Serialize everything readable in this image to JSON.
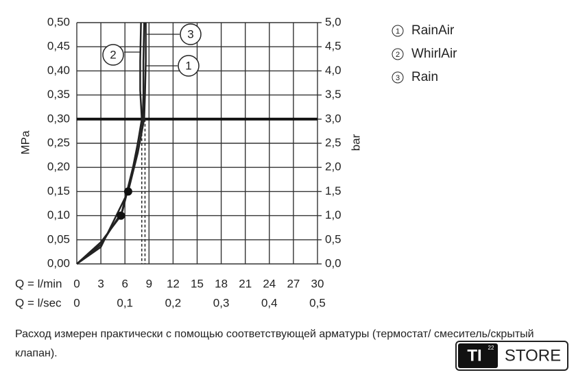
{
  "chart_data": {
    "type": "line",
    "y_label": "MPa",
    "y2_label": "bar",
    "x_label": "Q = l/min",
    "x2_label": "Q = l/sec",
    "xlim": [
      0,
      30
    ],
    "xticks": [
      0,
      3,
      6,
      9,
      12,
      15,
      18,
      21,
      24,
      27,
      30
    ],
    "x2lim": [
      0,
      0.5
    ],
    "x2ticks": [
      0,
      {
        "value": 0.1,
        "label": "0,1"
      },
      {
        "value": 0.2,
        "label": "0,2"
      },
      {
        "value": 0.3,
        "label": "0,3"
      },
      {
        "value": 0.4,
        "label": "0,4"
      },
      {
        "value": 0.5,
        "label": "0,5"
      }
    ],
    "ylim": [
      0,
      0.5
    ],
    "yticks": [
      {
        "value": 0,
        "label": "0,00"
      },
      {
        "value": 0.05,
        "label": "0,05"
      },
      {
        "value": 0.1,
        "label": "0,10"
      },
      {
        "value": 0.15,
        "label": "0,15"
      },
      {
        "value": 0.2,
        "label": "0,20"
      },
      {
        "value": 0.25,
        "label": "0,25"
      },
      {
        "value": 0.3,
        "label": "0,30"
      },
      {
        "value": 0.35,
        "label": "0,35"
      },
      {
        "value": 0.4,
        "label": "0,40"
      },
      {
        "value": 0.45,
        "label": "0,45"
      },
      {
        "value": 0.5,
        "label": "0,50"
      }
    ],
    "y2lim": [
      0,
      5
    ],
    "y2ticks": [
      {
        "value": 0,
        "label": "0,0"
      },
      {
        "value": 0.5,
        "label": "0,5"
      },
      {
        "value": 1,
        "label": "1,0"
      },
      {
        "value": 1.5,
        "label": "1,5"
      },
      {
        "value": 2,
        "label": "2,0"
      },
      {
        "value": 2.5,
        "label": "2,5"
      },
      {
        "value": 3,
        "label": "3,0"
      },
      {
        "value": 3.5,
        "label": "3,5"
      },
      {
        "value": 4,
        "label": "4,0"
      },
      {
        "value": 4.5,
        "label": "4,5"
      },
      {
        "value": 5,
        "label": "5,0"
      }
    ],
    "grid": true,
    "highlight_y": 0.3,
    "dashed_x": [
      8.1,
      8.5
    ],
    "markers": [
      {
        "x": 5.5,
        "y": 0.1
      },
      {
        "x": 6.4,
        "y": 0.15
      }
    ],
    "callouts": [
      "1",
      "2",
      "3"
    ],
    "series": [
      {
        "name": "RainAir",
        "color": "#222222",
        "x": [
          0,
          3,
          5.5,
          7,
          8.2,
          8.3,
          8.3,
          8.4
        ],
        "values": [
          0,
          0.045,
          0.1,
          0.2,
          0.3,
          0.35,
          0.42,
          0.5
        ]
      },
      {
        "name": "WhirlAir",
        "color": "#222222",
        "x": [
          0,
          3,
          5.7,
          7.2,
          8.1,
          7.9,
          7.9,
          8.0
        ],
        "values": [
          0,
          0.04,
          0.11,
          0.21,
          0.3,
          0.36,
          0.42,
          0.5
        ]
      },
      {
        "name": "Rain",
        "color": "#222222",
        "x": [
          0,
          3,
          6.4,
          7.6,
          8.4,
          8.5,
          8.6,
          8.6
        ],
        "values": [
          0,
          0.035,
          0.15,
          0.23,
          0.3,
          0.35,
          0.42,
          0.5
        ]
      }
    ]
  },
  "note": "Расход измерен практически с помощью соответствующей арматуры (термостат/ смеситель/скрытый клапан).",
  "logo": {
    "mark": "TI",
    "number": "22",
    "text": "STORE"
  }
}
